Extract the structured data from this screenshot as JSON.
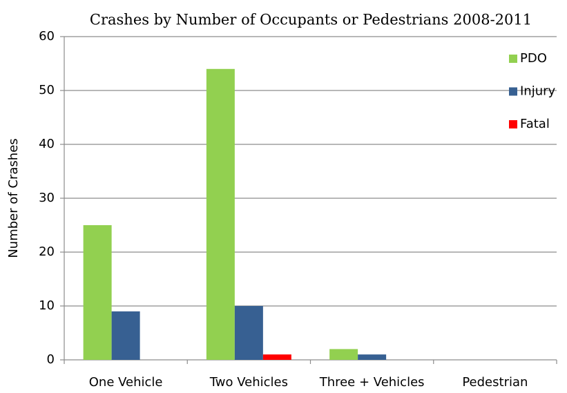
{
  "chart_data": {
    "type": "bar",
    "title": "Crashes by Number of Occupants or Pedestrians 2008-2011",
    "y_label": "Number of Crashes",
    "categories": [
      "One Vehicle",
      "Two Vehicles",
      "Three + Vehicles",
      "Pedestrian"
    ],
    "series": [
      {
        "name": "PDO",
        "color": "#92d050",
        "values": [
          25,
          54,
          2,
          0
        ]
      },
      {
        "name": "Injury",
        "color": "#376092",
        "values": [
          9,
          10,
          1,
          0
        ]
      },
      {
        "name": "Fatal",
        "color": "#ff0000",
        "values": [
          0,
          1,
          0,
          0
        ]
      }
    ],
    "ylim": [
      0,
      60
    ],
    "yticks": [
      0,
      10,
      20,
      30,
      40,
      50,
      60
    ],
    "grid": true,
    "legend": "top-right"
  }
}
